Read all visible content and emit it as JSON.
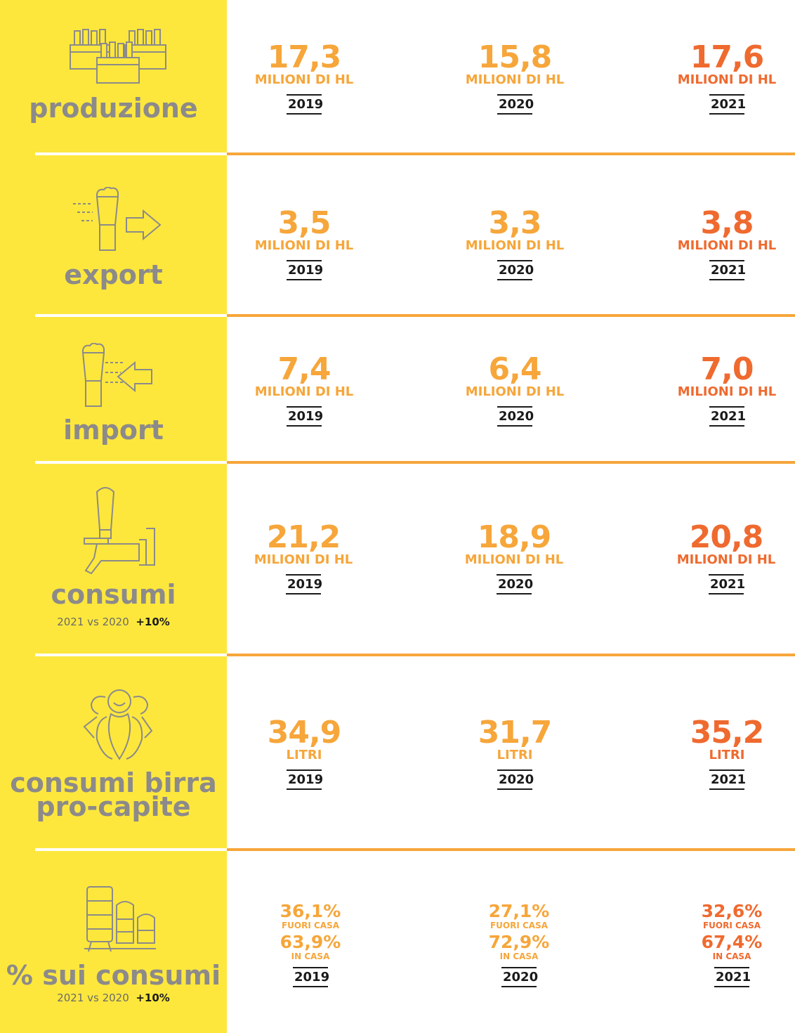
{
  "colors": {
    "sidebar": "#fde73d",
    "orange_light": "#f6a63a",
    "orange_dark": "#ef6a2f",
    "label_gray": "#8c8a8a"
  },
  "years": [
    "2019",
    "2020",
    "2021"
  ],
  "produzione": {
    "label": "produzione",
    "icon": "beer-crates-icon",
    "values": [
      "17,3",
      "15,8",
      "17,6"
    ],
    "unit": "MILIONI DI HL"
  },
  "export": {
    "label": "export",
    "icon": "beer-glass-arrow-out-icon",
    "values": [
      "3,5",
      "3,3",
      "3,8"
    ],
    "unit": "MILIONI DI HL"
  },
  "import": {
    "label": "import",
    "icon": "beer-glass-arrow-in-icon",
    "values": [
      "7,4",
      "6,4",
      "7,0"
    ],
    "unit": "MILIONI DI HL"
  },
  "consumi": {
    "label": "consumi",
    "icon": "beer-tap-icon",
    "compare": "2021 vs 2020",
    "change": "+10%",
    "values": [
      "21,2",
      "18,9",
      "20,8"
    ],
    "unit": "MILIONI DI HL"
  },
  "procapite": {
    "label_line1": "consumi birra",
    "label_line2": "pro-capite",
    "icon": "people-group-icon",
    "values": [
      "34,9",
      "31,7",
      "35,2"
    ],
    "unit": "LITRI"
  },
  "percentuali": {
    "label": "% sui consumi",
    "icon": "beer-kegs-icon",
    "compare": "2021 vs 2020",
    "change": "+10%",
    "fuori_label": "FUORI CASA",
    "casa_label": "IN CASA",
    "fuori": [
      "36,1%",
      "27,1%",
      "32,6%"
    ],
    "casa": [
      "63,9%",
      "72,9%",
      "67,4%"
    ]
  }
}
